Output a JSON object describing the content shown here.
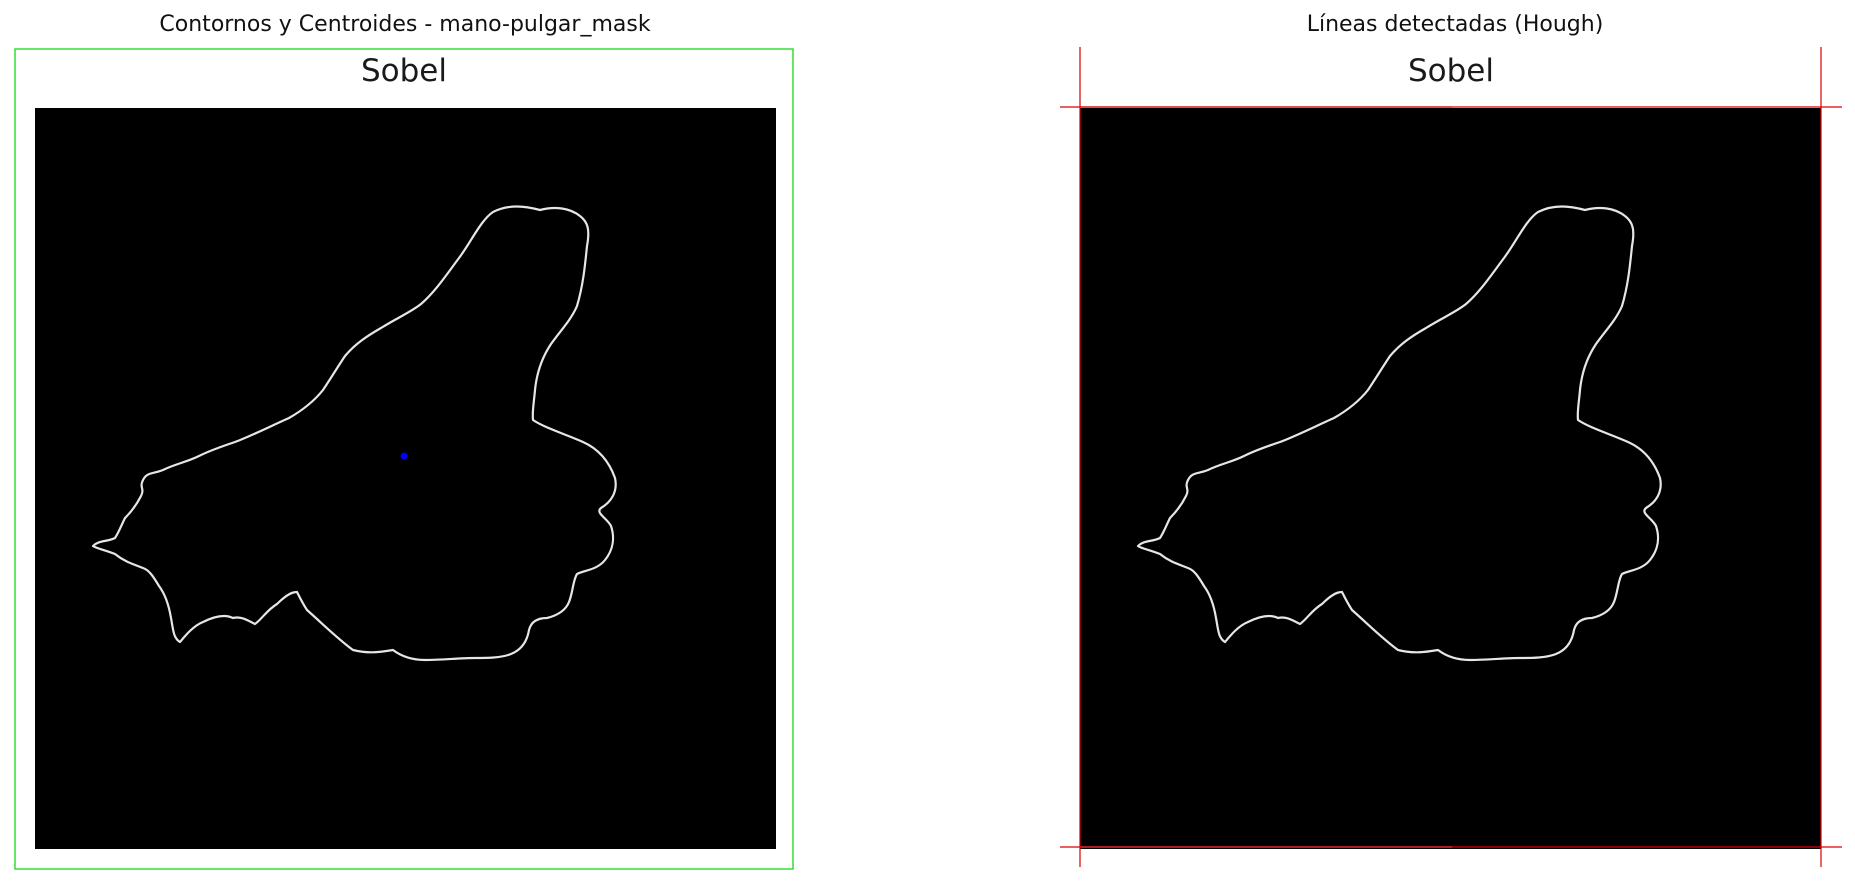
{
  "left_panel": {
    "title": "Contornos y Centroides - mano-pulgar_mask",
    "inner_title": "Sobel",
    "bounding_box_color": "#33dd33",
    "centroid_color": "#0000ff",
    "contour_color": "#e6e6e6",
    "background_color": "#000000"
  },
  "right_panel": {
    "title": "Líneas detectadas (Hough)",
    "inner_title": "Sobel",
    "hough_line_color": "#dd0000",
    "contour_color": "#e6e6e6",
    "background_color": "#000000"
  }
}
